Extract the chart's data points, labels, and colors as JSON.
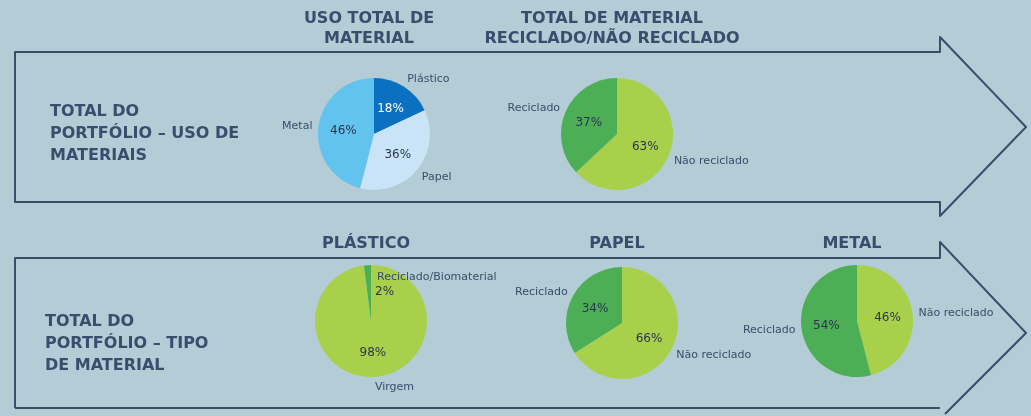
{
  "chart_data": [
    {
      "type": "other",
      "title": "TOTAL DO PORTFÓLIO – USO DE MATERIAIS"
    },
    {
      "type": "pie",
      "title": "USO TOTAL DE MATERIAL",
      "categories": [
        "Plástico",
        "Papel",
        "Metal"
      ],
      "values": [
        18,
        36,
        46
      ],
      "colors": [
        "#0b70c0",
        "#c8e4f6",
        "#62c3ee"
      ],
      "value_labels": [
        "18%",
        "36%",
        "46%"
      ]
    },
    {
      "type": "pie",
      "title": "TOTAL DE MATERIAL RECICLADO/NÃO RECICLADO",
      "categories": [
        "Não reciclado",
        "Reciclado"
      ],
      "values": [
        63,
        37
      ],
      "colors": [
        "#a9d04a",
        "#4caf55"
      ],
      "value_labels": [
        "63%",
        "37%"
      ]
    },
    {
      "type": "other",
      "title": "TOTAL DO PORTFÓLIO – TIPO DE MATERIAL"
    },
    {
      "type": "pie",
      "title": "PLÁSTICO",
      "categories": [
        "Virgem",
        "Reciclado/Biomaterial"
      ],
      "values": [
        98,
        2
      ],
      "colors": [
        "#a9d04a",
        "#4caf55"
      ],
      "value_labels": [
        "98%",
        "2%"
      ]
    },
    {
      "type": "pie",
      "title": "PAPEL",
      "categories": [
        "Não reciclado",
        "Reciclado"
      ],
      "values": [
        66,
        34
      ],
      "colors": [
        "#a9d04a",
        "#4caf55"
      ],
      "value_labels": [
        "66%",
        "34%"
      ]
    },
    {
      "type": "pie",
      "title": "METAL",
      "categories": [
        "Não reciclado",
        "Reciclado"
      ],
      "values": [
        46,
        54
      ],
      "colors": [
        "#a9d04a",
        "#4caf55"
      ],
      "value_labels": [
        "46%",
        "54%"
      ]
    }
  ]
}
